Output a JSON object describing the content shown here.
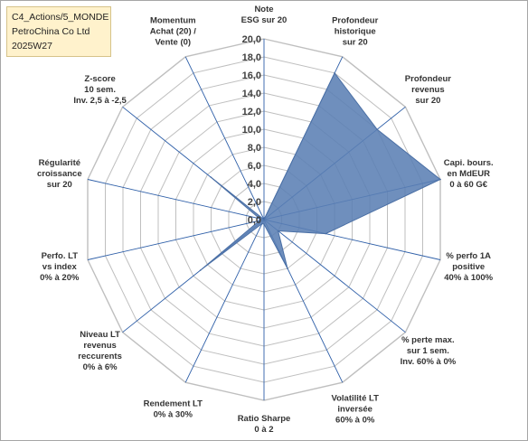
{
  "header": {
    "line1": "C4_Actions/5_MONDE",
    "line2": "PetroChina Co Ltd",
    "line3": "2025W27"
  },
  "chart_data": {
    "type": "radar",
    "title": "",
    "rlim": [
      0,
      20
    ],
    "tick_step": 2,
    "tick_labels": [
      "0,0",
      "2,0",
      "4,0",
      "6,0",
      "8,0",
      "10,0",
      "12,0",
      "14,0",
      "16,0",
      "18,0",
      "20,0"
    ],
    "axes": [
      {
        "label": [
          "Note",
          "ESG sur 20"
        ],
        "value": 0
      },
      {
        "label": [
          "Profondeur",
          "historique",
          "sur 20"
        ],
        "value": 18
      },
      {
        "label": [
          "Profondeur",
          "revenus",
          "sur 20"
        ],
        "value": 16
      },
      {
        "label": [
          "Capi. bours.",
          "en MdEUR",
          "0 à 60 G€"
        ],
        "value": 20
      },
      {
        "label": [
          "% perfo 1A",
          "positive",
          "40% à 100%"
        ],
        "value": 7
      },
      {
        "label": [
          "% perte max.",
          "sur 1 sem.",
          "Inv. 60% à 0%"
        ],
        "value": 2
      },
      {
        "label": [
          "Volatilité LT",
          "inversée",
          "60% à 0%"
        ],
        "value": 6
      },
      {
        "label": [
          "Ratio Sharpe",
          "0 à 2"
        ],
        "value": 0.5
      },
      {
        "label": [
          "Rendement LT",
          "0% à 30%"
        ],
        "value": 0.5
      },
      {
        "label": [
          "Niveau LT",
          "revenus",
          "reccurents",
          "0% à 6%"
        ],
        "value": 9
      },
      {
        "label": [
          "Perfo. LT",
          "vs index",
          "0% à 20%"
        ],
        "value": 0.5
      },
      {
        "label": [
          "Régularité",
          "croissance",
          "sur 20"
        ],
        "value": 0.5
      },
      {
        "label": [
          "Z-score",
          "10 sem.",
          "Inv. 2,5 à -2,5"
        ],
        "value": 7.5
      },
      {
        "label": [
          "Momentum",
          "Achat (20) /",
          "Vente (0)"
        ],
        "value": 0
      }
    ],
    "grid": true,
    "fill_color": "#5b7fb4",
    "grid_color": "#bfbfbf",
    "spoke_color": "#2e5fa8"
  }
}
